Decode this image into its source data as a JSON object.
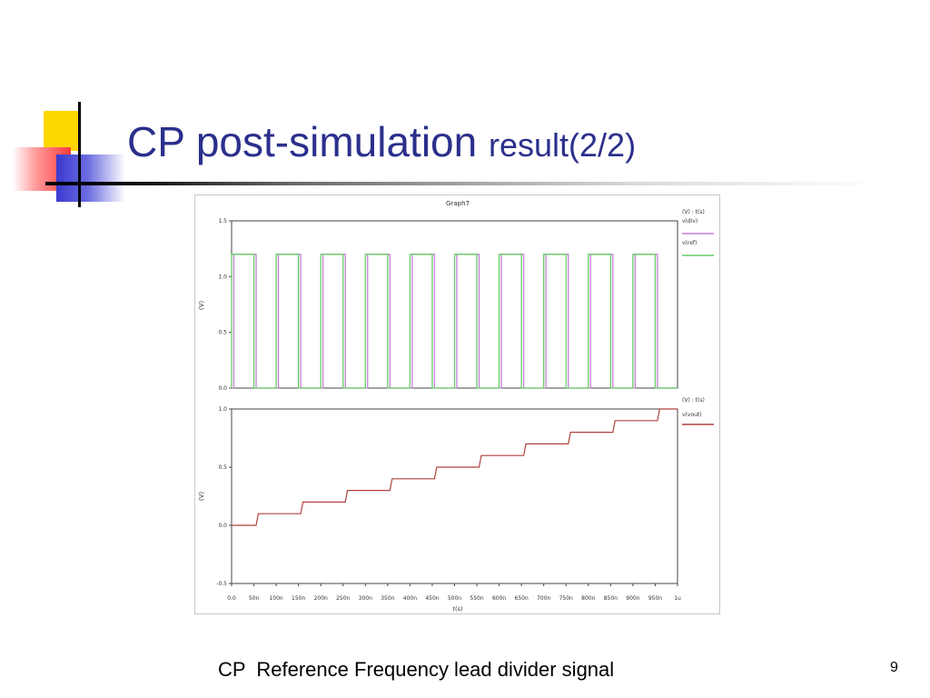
{
  "slide": {
    "title_main": "CP post-simulation",
    "title_suffix": "result(2/2)",
    "caption": "CP  Reference Frequency lead divider signal",
    "page_number": "9",
    "accent_colors": {
      "yellow": "#ffd700",
      "red": "#ff3b3b",
      "blue": "#3a3ad0",
      "title": "#2b2f8c"
    }
  },
  "chart_data": [
    {
      "type": "line",
      "title": "Graph7",
      "xlabel": "",
      "ylabel": "(V)",
      "xlim": [
        0,
        1000
      ],
      "ylim": [
        0,
        1.5
      ],
      "yticks": [
        "0.0",
        "0.5",
        "1.0",
        "1.5"
      ],
      "legend_header": "(V) : t(s)",
      "legend_position": "right",
      "grid": false,
      "series": [
        {
          "name": "v(div)",
          "color": "#c77fd6",
          "period_ns": 100,
          "high_start_ns": 5,
          "high_end_ns": 55,
          "low": 0.0,
          "high": 1.2,
          "t_end_ns": 1000
        },
        {
          "name": "v(ref)",
          "color": "#66cc66",
          "period_ns": 100,
          "high_start_ns": 0,
          "high_end_ns": 50,
          "low": 0.0,
          "high": 1.2,
          "t_end_ns": 1000
        }
      ]
    },
    {
      "type": "line",
      "title": "",
      "xlabel": "t(s)",
      "ylabel": "(V)",
      "xlim": [
        0,
        1000
      ],
      "ylim": [
        -0.5,
        1.0
      ],
      "yticks": [
        "-0.5",
        "0.0",
        "0.5",
        "1.0"
      ],
      "xticks": [
        "0.0",
        "50n",
        "100n",
        "150n",
        "200n",
        "250n",
        "300n",
        "350n",
        "400n",
        "450n",
        "500n",
        "550n",
        "600n",
        "650n",
        "700n",
        "750n",
        "800n",
        "850n",
        "900n",
        "950n",
        "1u"
      ],
      "legend_header": "(V) : t(s)",
      "legend_position": "right",
      "grid": false,
      "series": [
        {
          "name": "v(vout)",
          "color": "#b0423d",
          "steps_start_ns": [
            55,
            155,
            255,
            355,
            455,
            555,
            655,
            755,
            855,
            955
          ],
          "step_width_ns": 5,
          "step_size": 0.1,
          "initial": 0.0,
          "t_end_ns": 1000
        }
      ]
    }
  ]
}
